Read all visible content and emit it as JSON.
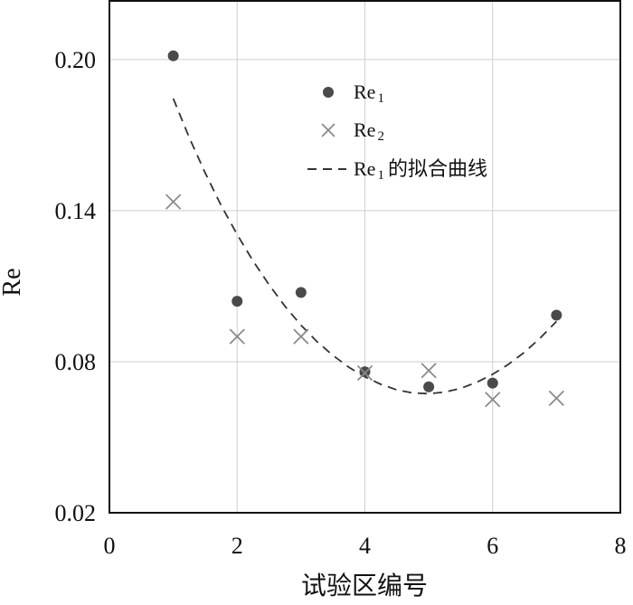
{
  "chart_data": {
    "type": "scatter",
    "title": "",
    "xlabel": "试验区编号",
    "ylabel": "Re",
    "xlim": [
      0,
      8
    ],
    "ylim": [
      0.02,
      0.2233
    ],
    "x_ticks": [
      0,
      2,
      4,
      6,
      8
    ],
    "y_ticks": [
      0.02,
      0.08,
      0.14,
      0.2
    ],
    "x_tick_labels": [
      "0",
      "2",
      "4",
      "6",
      "8"
    ],
    "y_tick_labels": [
      "0.02",
      "0.08",
      "0.14",
      "0.20"
    ],
    "grid": true,
    "legend_position": "top-center",
    "series": [
      {
        "name_base": "Re",
        "name_sub": "1",
        "marker": "circle",
        "color": "#4a4a4a",
        "x": [
          1,
          2,
          3,
          4,
          5,
          6,
          7
        ],
        "y": [
          0.2015,
          0.104,
          0.1075,
          0.076,
          0.07,
          0.0715,
          0.0985
        ]
      },
      {
        "name_base": "Re",
        "name_sub": "2",
        "marker": "x",
        "color": "#8a8a8a",
        "x": [
          1,
          2,
          3,
          4,
          5,
          6,
          7
        ],
        "y": [
          0.1435,
          0.09,
          0.09,
          0.0755,
          0.0765,
          0.065,
          0.0655
        ]
      }
    ],
    "fit_curve": {
      "name_base": "Re",
      "name_sub": "1",
      "name_suffix": "的拟合曲线",
      "style": "dashed",
      "color": "#333333",
      "x": [
        1.0,
        1.25,
        1.5,
        1.75,
        2.0,
        2.25,
        2.5,
        2.75,
        3.0,
        3.25,
        3.5,
        3.75,
        4.0,
        4.25,
        4.5,
        4.75,
        5.0,
        5.25,
        5.5,
        5.75,
        6.0,
        6.25,
        6.5,
        6.75,
        7.0
      ],
      "y": [
        0.1845,
        0.169,
        0.155,
        0.142,
        0.1305,
        0.12,
        0.1105,
        0.102,
        0.0945,
        0.088,
        0.0825,
        0.0778,
        0.074,
        0.071,
        0.0688,
        0.0676,
        0.0673,
        0.0679,
        0.0694,
        0.0718,
        0.075,
        0.079,
        0.0838,
        0.0895,
        0.096
      ]
    }
  }
}
